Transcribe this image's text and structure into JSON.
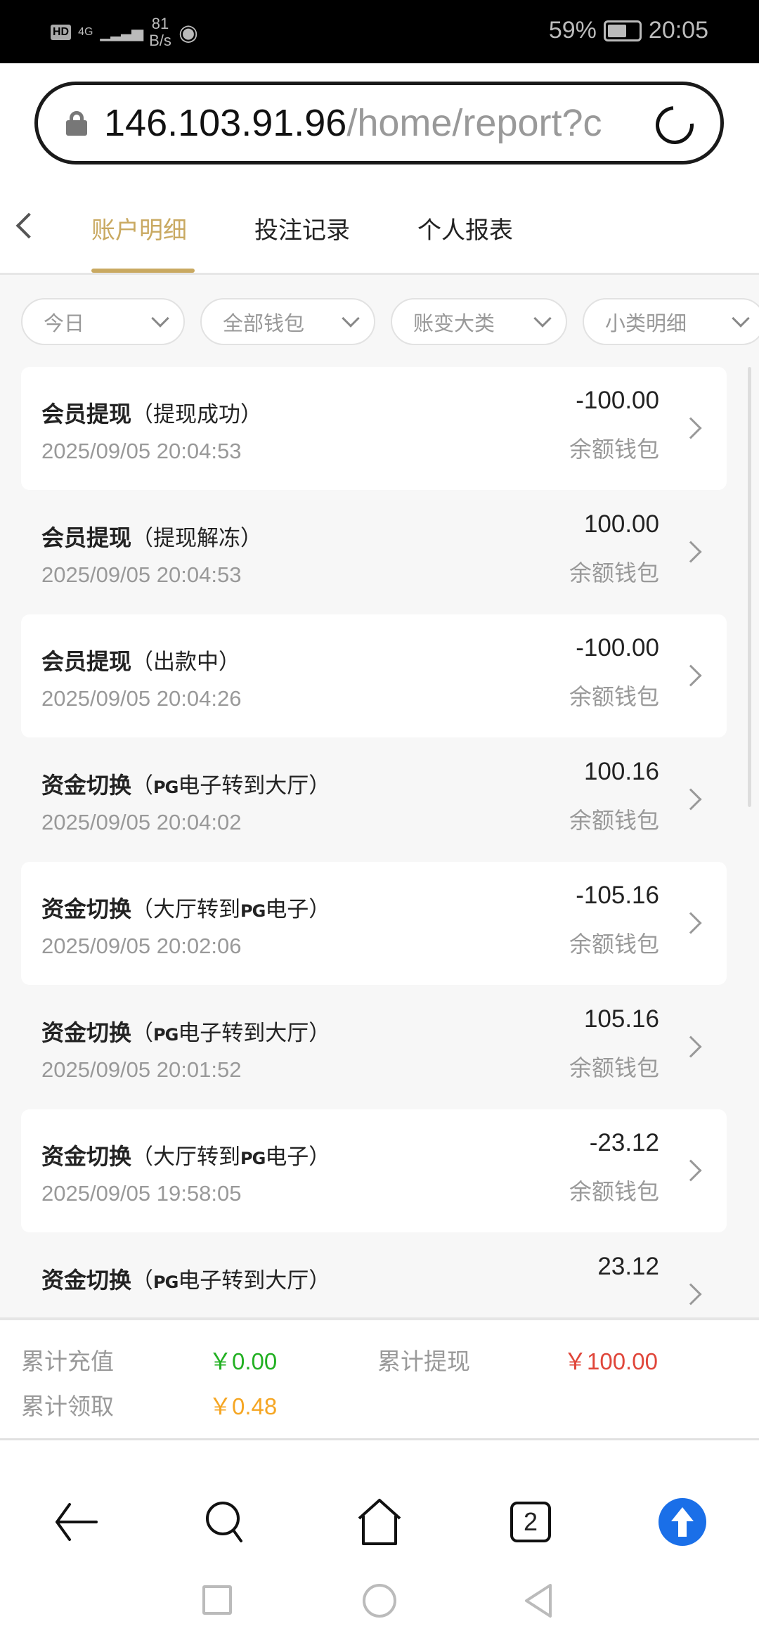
{
  "status_bar": {
    "network": "4G",
    "speed_value": "81",
    "speed_unit": "B/s",
    "battery": "59%",
    "battery_level": 0.59,
    "time": "20:05"
  },
  "browser": {
    "url_host": "146.103.91.96",
    "url_path": "/home/report?c",
    "tab_count": "2"
  },
  "tabs": [
    {
      "label": "账户明细",
      "active": true
    },
    {
      "label": "投注记录",
      "active": false
    },
    {
      "label": "个人报表",
      "active": false
    }
  ],
  "filters": [
    {
      "label": "今日"
    },
    {
      "label": "全部钱包"
    },
    {
      "label": "账变大类"
    },
    {
      "label": "小类明细"
    }
  ],
  "records": [
    {
      "type": "会员提现",
      "pre": "（提现成功）",
      "logo": "",
      "post": "",
      "time": "2025/09/05 20:04:53",
      "amount": "-100.00",
      "wallet": "余额钱包"
    },
    {
      "type": "会员提现",
      "pre": "（提现解冻）",
      "logo": "",
      "post": "",
      "time": "2025/09/05 20:04:53",
      "amount": "100.00",
      "wallet": "余额钱包"
    },
    {
      "type": "会员提现",
      "pre": "（出款中）",
      "logo": "",
      "post": "",
      "time": "2025/09/05 20:04:26",
      "amount": "-100.00",
      "wallet": "余额钱包"
    },
    {
      "type": "资金切换",
      "pre": "（",
      "logo": "PG",
      "post": "电子转到大厅）",
      "time": "2025/09/05 20:04:02",
      "amount": "100.16",
      "wallet": "余额钱包"
    },
    {
      "type": "资金切换",
      "pre": "（大厅转到",
      "logo": "PG",
      "post": "电子）",
      "time": "2025/09/05 20:02:06",
      "amount": "-105.16",
      "wallet": "余额钱包"
    },
    {
      "type": "资金切换",
      "pre": "（",
      "logo": "PG",
      "post": "电子转到大厅）",
      "time": "2025/09/05 20:01:52",
      "amount": "105.16",
      "wallet": "余额钱包"
    },
    {
      "type": "资金切换",
      "pre": "（大厅转到",
      "logo": "PG",
      "post": "电子）",
      "time": "2025/09/05 19:58:05",
      "amount": "-23.12",
      "wallet": "余额钱包"
    },
    {
      "type": "资金切换",
      "pre": "（",
      "logo": "PG",
      "post": "电子转到大厅）",
      "time": "",
      "amount": "23.12",
      "wallet": ""
    }
  ],
  "summary": {
    "deposit_label": "累计充值",
    "deposit_value": "￥0.00",
    "withdraw_label": "累计提现",
    "withdraw_value": "￥100.00",
    "claim_label": "累计领取",
    "claim_value": "￥0.48"
  },
  "colors": {
    "accent": "#c9a961",
    "deposit": "#22b022",
    "withdraw": "#e0463a",
    "claim": "#f5a623",
    "scroll_top": "#1a6fe8"
  }
}
